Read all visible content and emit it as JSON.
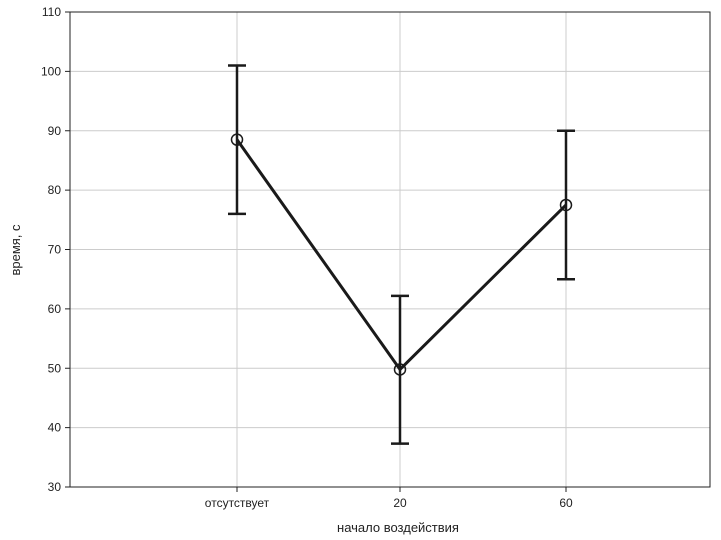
{
  "chart_data": {
    "type": "line",
    "title": "",
    "xlabel": "начало воздействия",
    "ylabel": "время, с",
    "categories": [
      "отсутствует",
      "20",
      "60"
    ],
    "series": [
      {
        "values": [
          88.5,
          49.8,
          77.5
        ],
        "error_low": [
          76,
          37.3,
          65
        ],
        "error_high": [
          101,
          62.2,
          90
        ]
      }
    ],
    "ylim": [
      30,
      110
    ],
    "yticks": [
      "30",
      "40",
      "50",
      "60",
      "70",
      "80",
      "90",
      "100",
      "110"
    ],
    "grid": true,
    "legend": "none",
    "colors": {
      "line": "#1a1a1a",
      "grid": "#cccccc",
      "frame": "#222222"
    }
  }
}
